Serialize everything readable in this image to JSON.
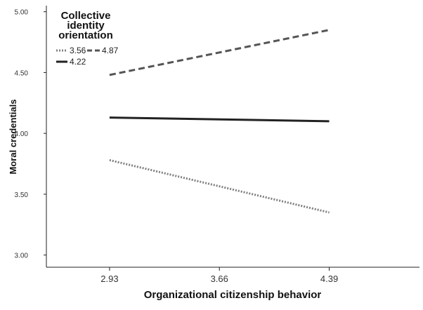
{
  "chart_data": {
    "type": "line",
    "x": [
      2.93,
      4.39
    ],
    "x_ticks": [
      "2.93",
      "3.66",
      "4.39"
    ],
    "xlim": [
      2.51,
      4.99
    ],
    "y_ticks": [
      "3.00",
      "3.50",
      "4.00",
      "4.50",
      "5.00"
    ],
    "ylim": [
      2.9,
      5.05
    ],
    "xlabel": "Organizational citizenship behavior",
    "ylabel": "Moral credentials",
    "legend": {
      "title_lines": [
        "Collective",
        "identity",
        "orientation"
      ],
      "placement": "top-left"
    },
    "grid": false,
    "series": [
      {
        "name": "3.56",
        "values": [
          3.78,
          3.35
        ],
        "style": "dotted",
        "color": "#7f7f7f"
      },
      {
        "name": "4.87",
        "values": [
          4.48,
          4.85
        ],
        "style": "dashed",
        "color": "#555555"
      },
      {
        "name": "4.22",
        "values": [
          4.13,
          4.1
        ],
        "style": "solid",
        "color": "#222222"
      }
    ]
  }
}
